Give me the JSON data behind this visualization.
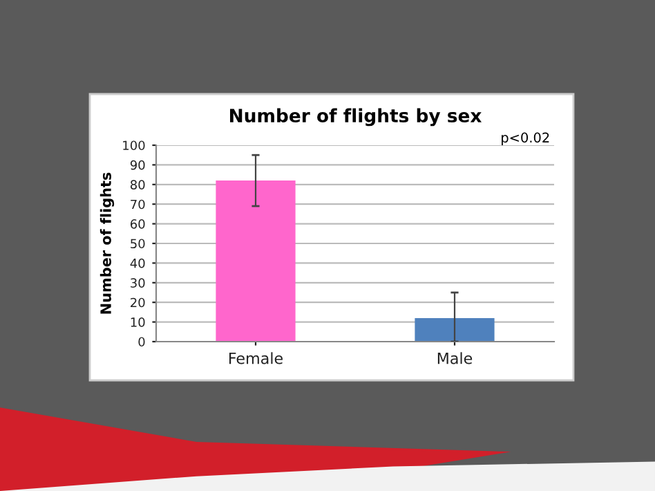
{
  "chart_data": {
    "type": "bar",
    "title": "Number of flights by sex",
    "ylabel": "Number of flights",
    "categories": [
      "Female",
      "Male"
    ],
    "series": [
      {
        "colors": [
          "#ff66cc",
          "#4f81bd"
        ],
        "values": [
          82,
          12
        ],
        "errors": [
          13,
          [
            0,
            25
          ]
        ]
      }
    ],
    "ylim": [
      0,
      100
    ],
    "yticks": [
      0,
      10,
      20,
      30,
      40,
      50,
      60,
      70,
      80,
      90,
      100
    ],
    "grid": "y",
    "annotations": [
      "p<0.02"
    ]
  }
}
